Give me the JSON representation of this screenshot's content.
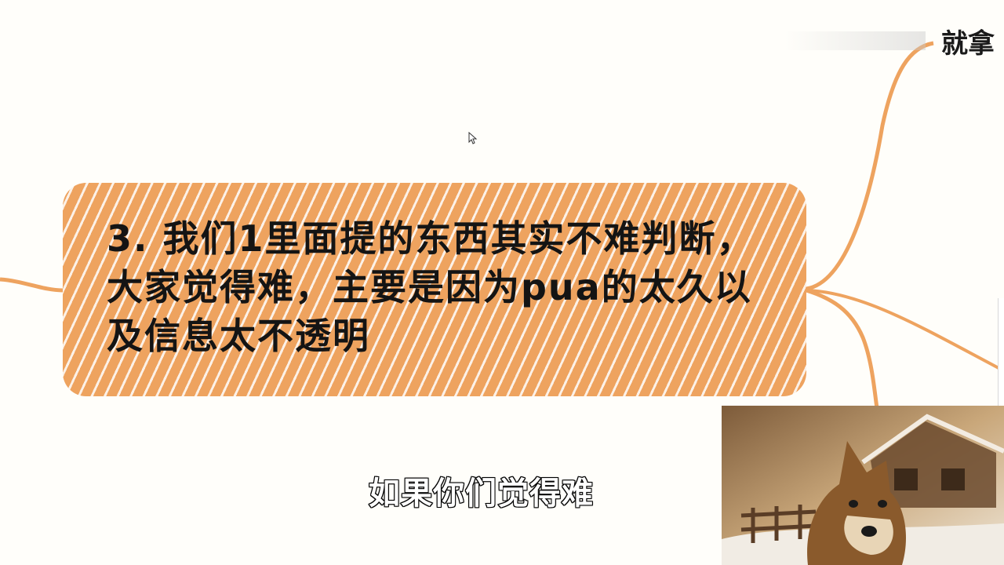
{
  "mindmap": {
    "node_text": "3. 我们1里面提的东西其实不难判断，大家觉得难，主要是因为pua的太久以及信息太不透明",
    "top_right_label": "就拿",
    "node_color": "#eea35f",
    "connector_color": "#eea35f"
  },
  "subtitle": {
    "text": "如果你们觉得难"
  },
  "webcam": {
    "icon": "dog-webcam-overlay"
  }
}
